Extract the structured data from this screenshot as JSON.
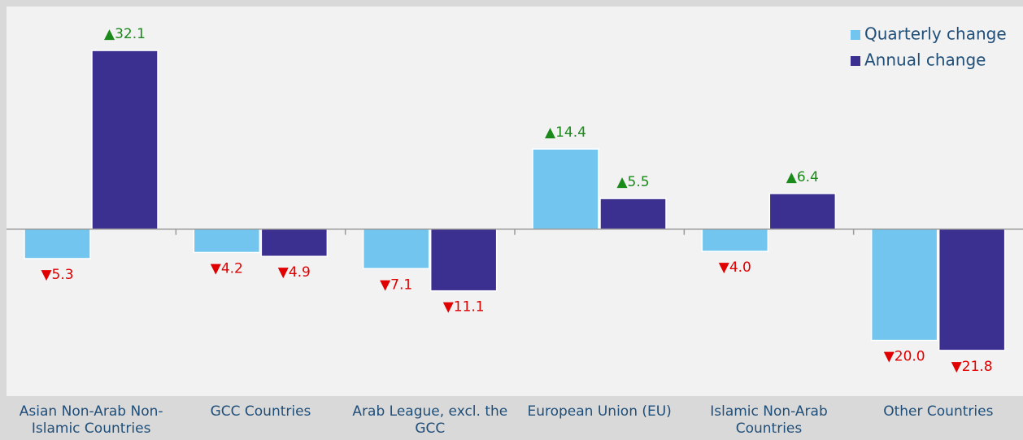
{
  "chart_data": {
    "type": "bar",
    "categories": [
      "Asian Non-Arab Non-Islamic Countries",
      "GCC Countries",
      "Arab League, excl. the GCC",
      "European Union (EU)",
      "Islamic Non-Arab Countries",
      "Other Countries"
    ],
    "series": [
      {
        "name": "Quarterly change",
        "color": "#72c5ee",
        "values": [
          -5.3,
          -4.2,
          -7.1,
          14.4,
          -4.0,
          -20.0
        ],
        "value_labels": [
          "▼5.3",
          "▼4.2",
          "▼7.1",
          "▲14.4",
          "▼4.0",
          "▼20.0"
        ]
      },
      {
        "name": "Annual change",
        "color": "#3b2f8f",
        "values": [
          32.1,
          -4.9,
          -11.1,
          5.5,
          6.4,
          -21.8
        ],
        "value_labels": [
          "▲32.1",
          "▼4.9",
          "▼11.1",
          "▲5.5",
          "▲6.4",
          "▼21.8"
        ]
      }
    ],
    "ylim": [
      -30,
      40
    ],
    "legend": "top-right"
  }
}
